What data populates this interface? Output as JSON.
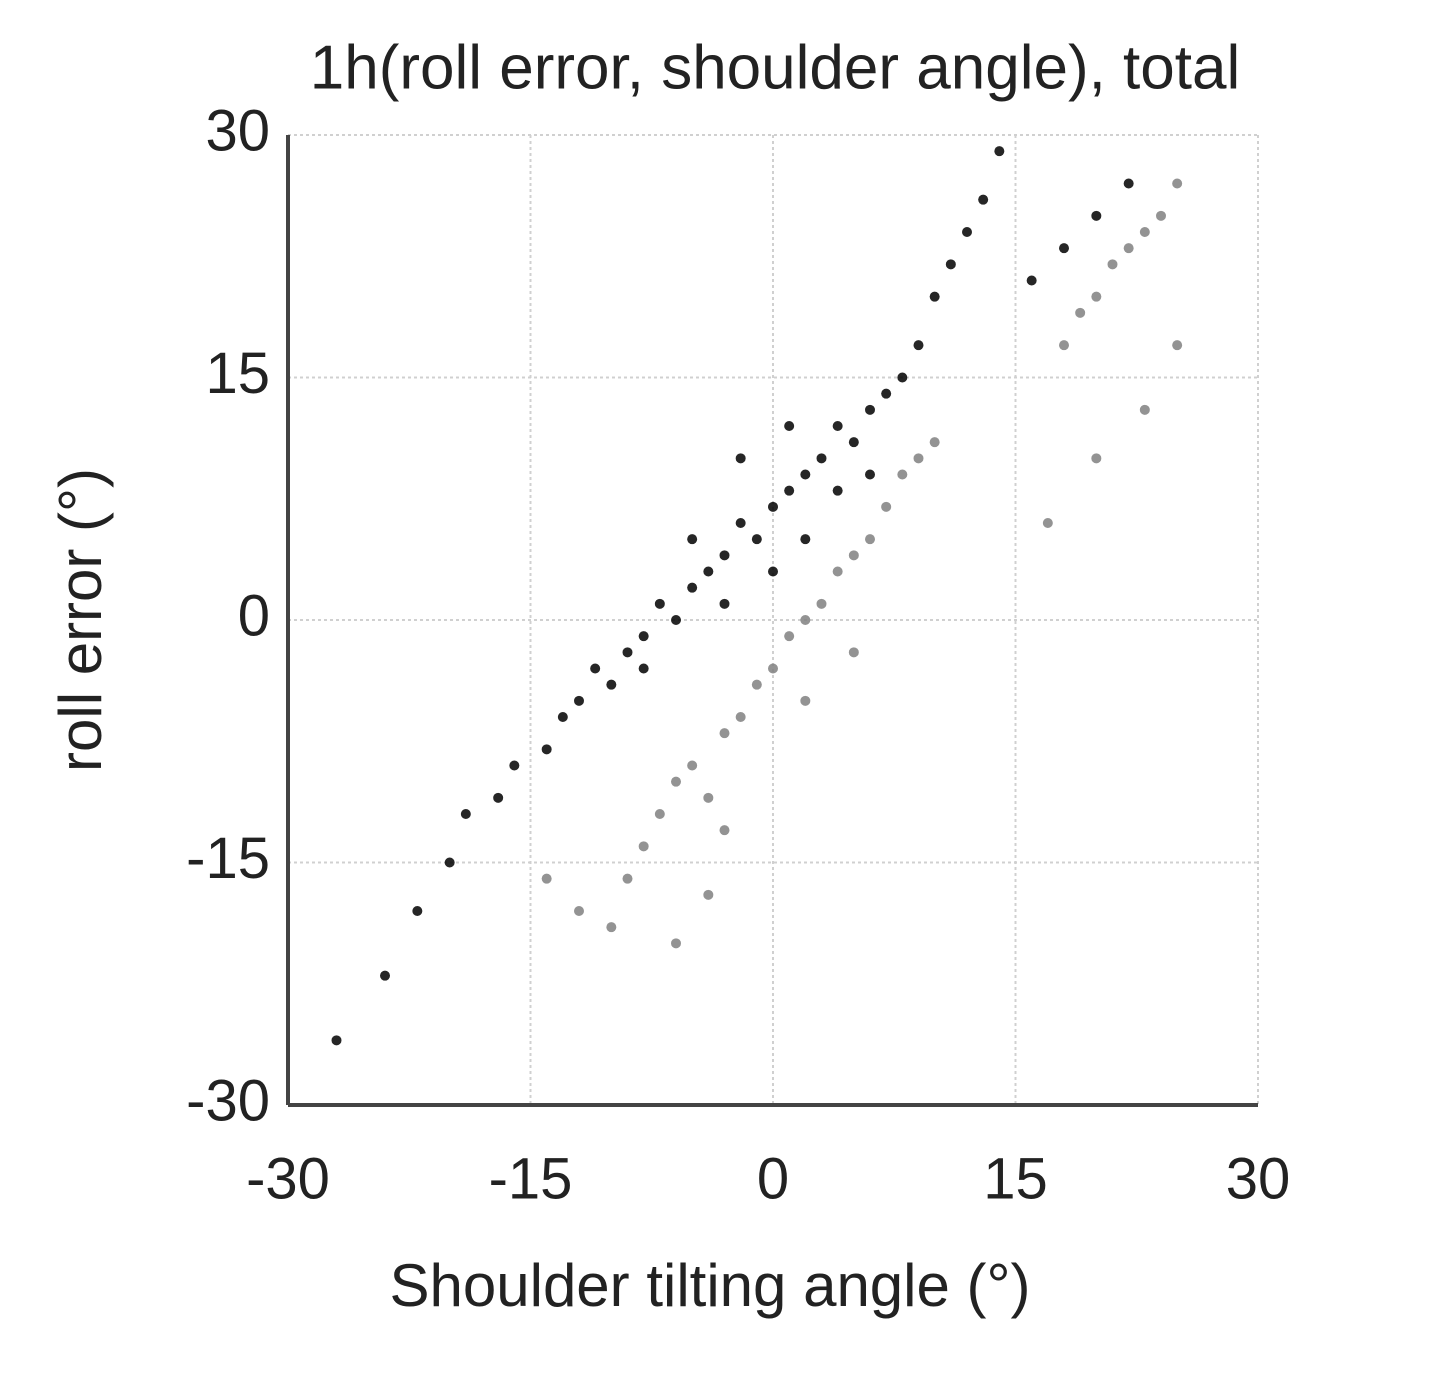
{
  "chart_data": {
    "type": "scatter",
    "title": "1h(roll error, shoulder angle), total",
    "x_label": "Shoulder tilting angle (°)",
    "y_label": "roll error (°)",
    "xlim": [
      -30,
      30
    ],
    "ylim": [
      -30,
      30
    ],
    "xticks": [
      -30,
      -15,
      0,
      15,
      30
    ],
    "yticks": [
      -30,
      -15,
      0,
      15,
      30
    ],
    "grid": true,
    "series": [
      {
        "color": "#000000",
        "x": [
          -27,
          -24,
          -22,
          -20,
          -19,
          -17,
          -16,
          -14,
          -13,
          -12,
          -11,
          -10,
          -9,
          -8,
          -7,
          -6,
          -5,
          -4,
          -3,
          -2,
          -1,
          0,
          1,
          2,
          3,
          4,
          5,
          6,
          7,
          8,
          9,
          10,
          11,
          12,
          13,
          14,
          16,
          18,
          20,
          22,
          -5,
          -3,
          0,
          2,
          -8,
          4,
          6,
          -2,
          1
        ],
        "values": [
          -26,
          -22,
          -18,
          -15,
          -12,
          -11,
          -9,
          -8,
          -6,
          -5,
          -3,
          -4,
          -2,
          -1,
          1,
          0,
          2,
          3,
          4,
          6,
          5,
          7,
          8,
          9,
          10,
          12,
          11,
          13,
          14,
          15,
          17,
          20,
          22,
          24,
          26,
          29,
          21,
          23,
          25,
          27,
          5,
          1,
          3,
          5,
          -3,
          8,
          9,
          10,
          12
        ]
      },
      {
        "color": "#808080",
        "x": [
          -12,
          -10,
          -9,
          -8,
          -7,
          -6,
          -5,
          -4,
          -3,
          -2,
          -1,
          0,
          1,
          2,
          3,
          4,
          5,
          6,
          7,
          8,
          9,
          10,
          -6,
          -4,
          -14,
          18,
          19,
          20,
          21,
          22,
          23,
          24,
          25,
          17,
          20,
          23,
          25,
          -3,
          2,
          5
        ],
        "values": [
          -18,
          -19,
          -16,
          -14,
          -12,
          -10,
          -9,
          -11,
          -7,
          -6,
          -4,
          -3,
          -1,
          0,
          1,
          3,
          4,
          5,
          7,
          9,
          10,
          11,
          -20,
          -17,
          -16,
          17,
          19,
          20,
          22,
          23,
          24,
          25,
          27,
          6,
          10,
          13,
          17,
          -13,
          -5,
          -2
        ]
      }
    ]
  }
}
